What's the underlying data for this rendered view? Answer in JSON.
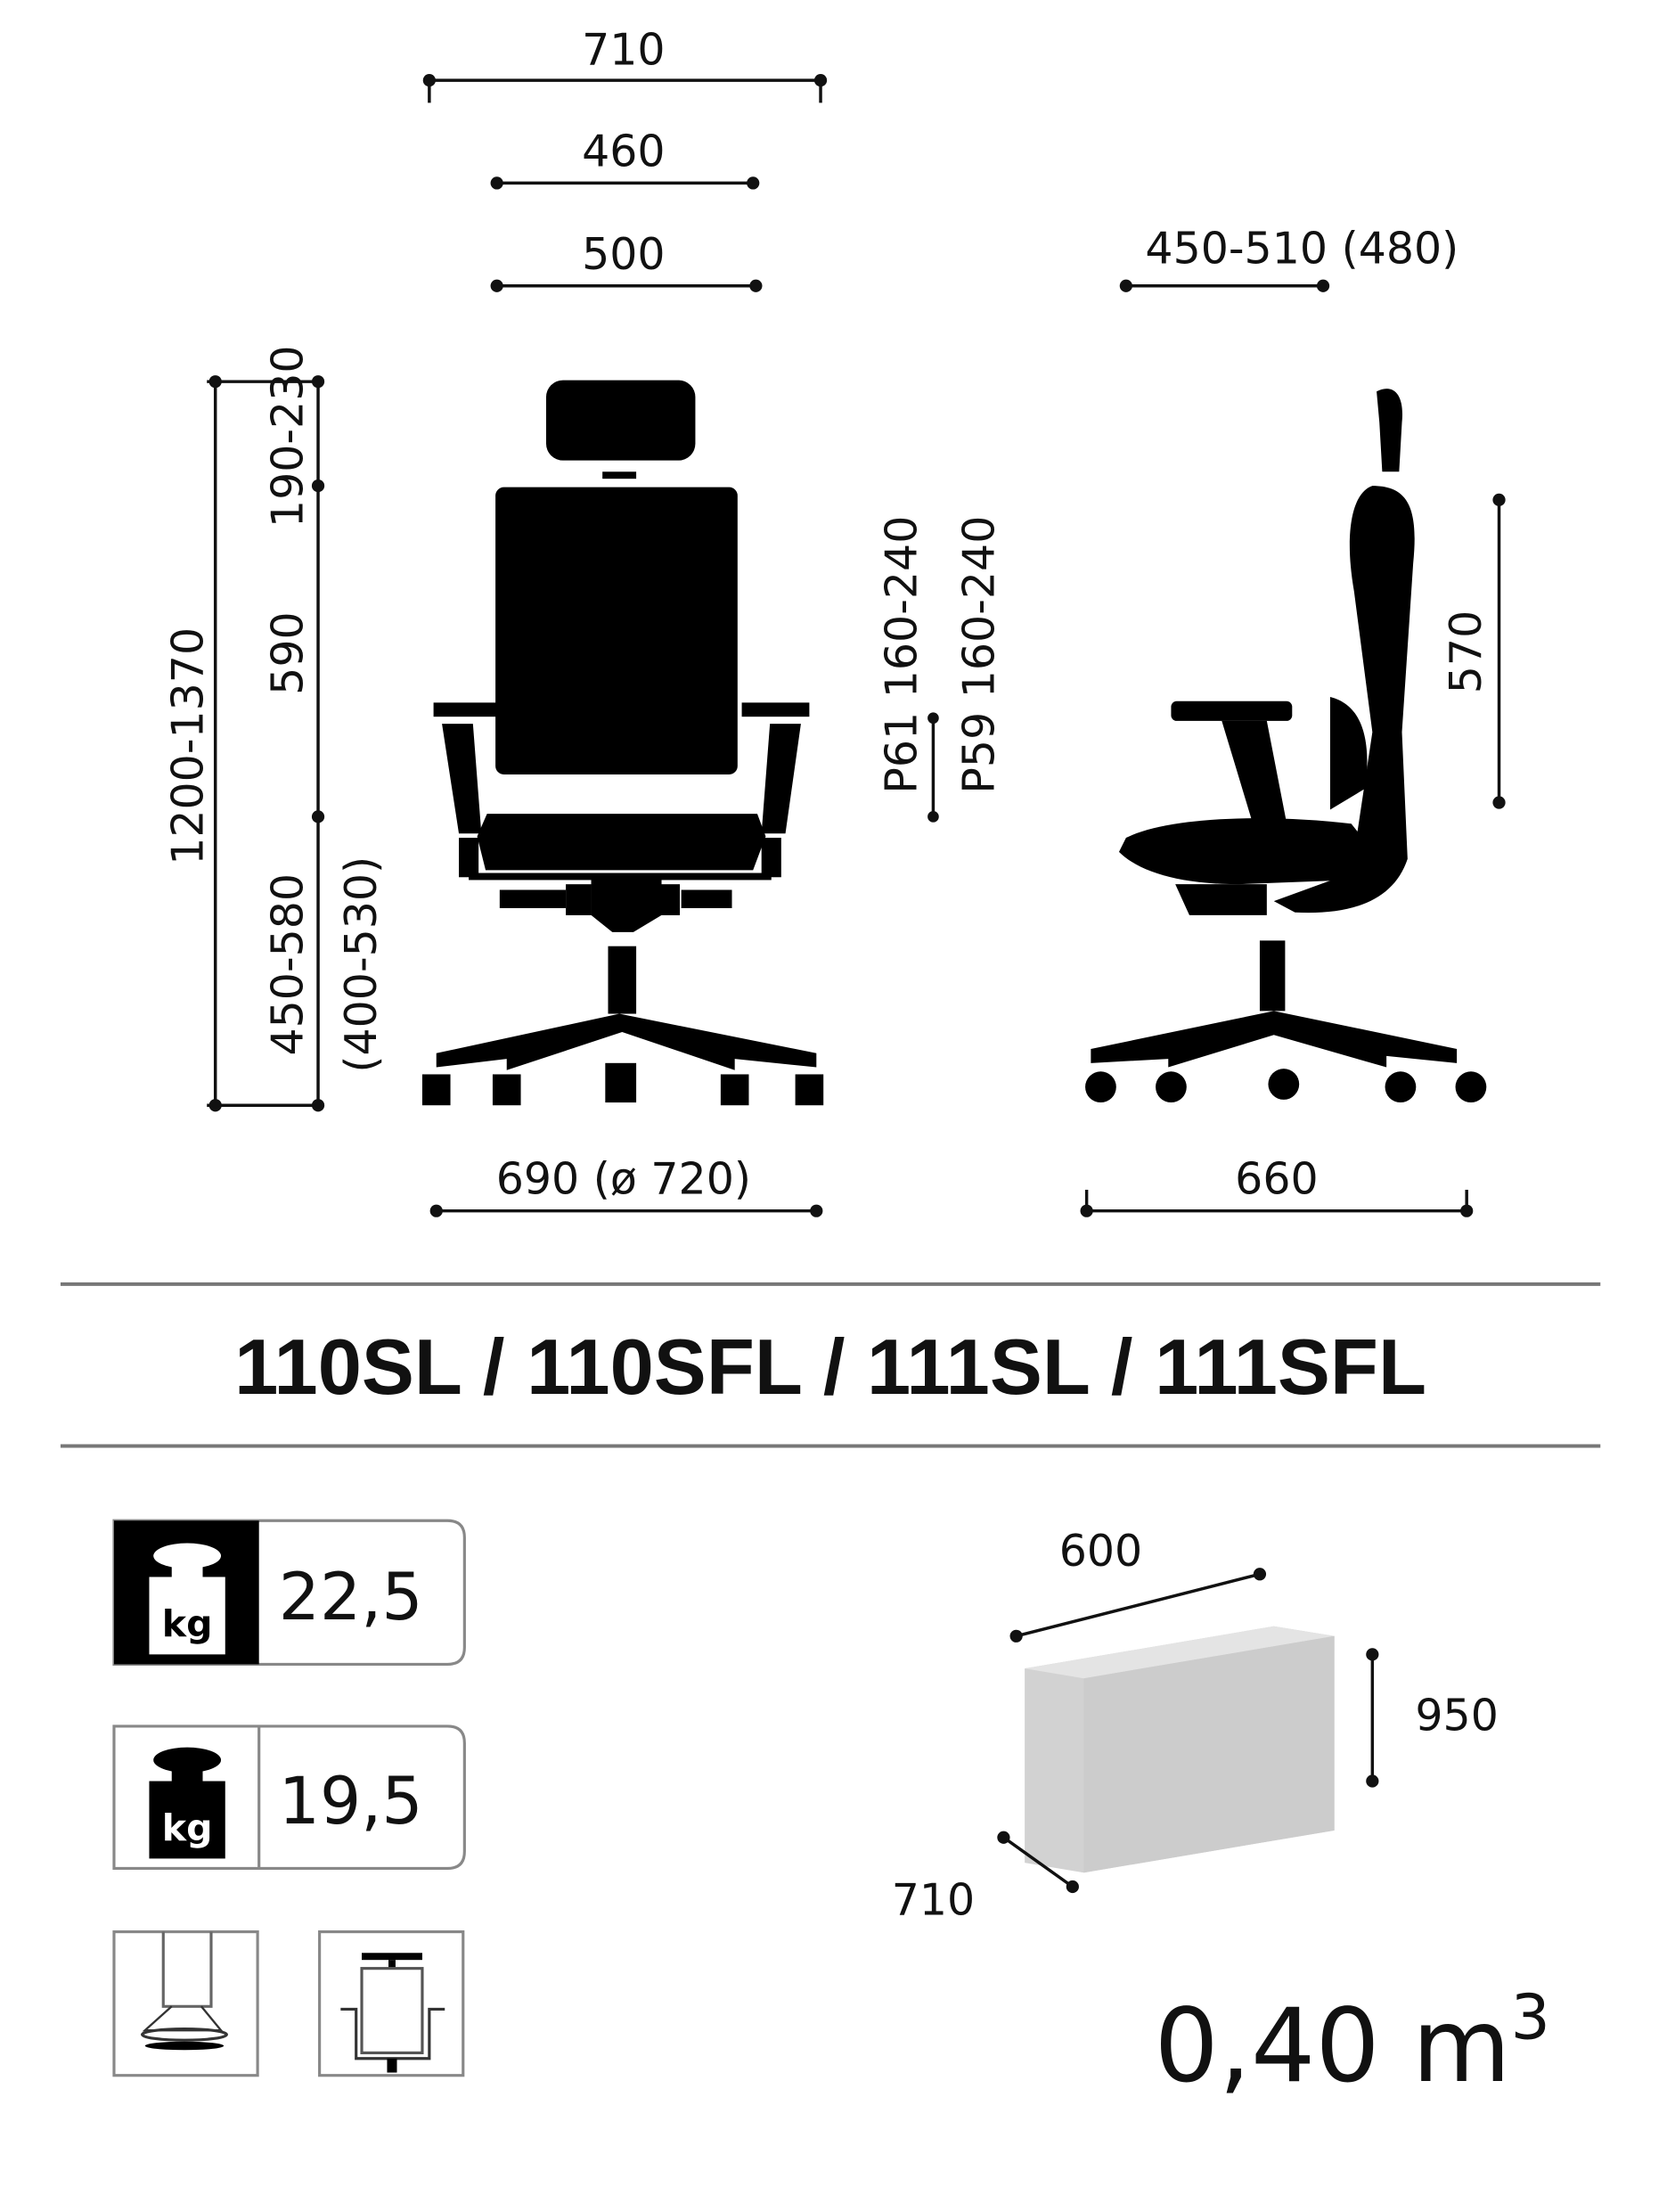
{
  "dimensions": {
    "overall_width": "710",
    "seat_width": "460",
    "back_width": "500",
    "seat_depth": "450-510 (480)",
    "total_height": "1200-1370",
    "headrest_adjust": "190-230",
    "back_height": "590",
    "seat_height": "450-580",
    "seat_height_alt": "(400-530)",
    "armrest_p61": "P61 160-240",
    "armrest_p59": "P59 160-240",
    "backrest_side": "570",
    "base_width": "690 (ø 720)",
    "base_depth": "660"
  },
  "title": "110SL / 110SFL / 111SL / 111SFL",
  "weights": [
    {
      "icon": "gross-weight-kg-icon",
      "unit": "kg",
      "value": "22,5"
    },
    {
      "icon": "net-weight-kg-icon",
      "unit": "kg",
      "value": "19,5"
    }
  ],
  "feature_icons": [
    "glide-foot-icon",
    "headrest-chair-icon"
  ],
  "package": {
    "width": "600",
    "height": "950",
    "depth": "710",
    "volume": "0,40 m",
    "volume_exp": "3"
  }
}
